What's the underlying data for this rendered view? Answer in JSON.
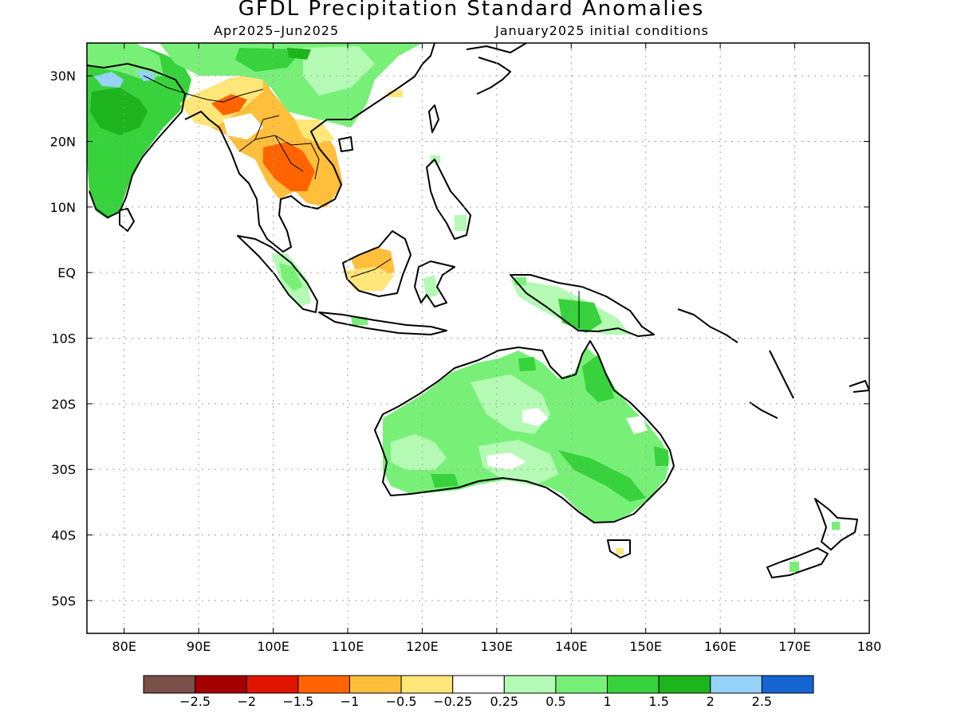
{
  "title": "GFDL Precipitation Standard Anomalies",
  "subtitle_left": "Apr2025–Jun2025",
  "subtitle_right": "January2025 initial conditions",
  "map": {
    "lon_range": [
      75,
      180
    ],
    "lat_range": [
      -55,
      35
    ],
    "lat_ticks": [
      {
        "value": 30,
        "label": "30N"
      },
      {
        "value": 20,
        "label": "20N"
      },
      {
        "value": 10,
        "label": "10N"
      },
      {
        "value": 0,
        "label": "EQ"
      },
      {
        "value": -10,
        "label": "10S"
      },
      {
        "value": -20,
        "label": "20S"
      },
      {
        "value": -30,
        "label": "30S"
      },
      {
        "value": -40,
        "label": "40S"
      },
      {
        "value": -50,
        "label": "50S"
      }
    ],
    "lon_ticks": [
      {
        "value": 80,
        "label": "80E"
      },
      {
        "value": 90,
        "label": "90E"
      },
      {
        "value": 100,
        "label": "100E"
      },
      {
        "value": 110,
        "label": "110E"
      },
      {
        "value": 120,
        "label": "120E"
      },
      {
        "value": 130,
        "label": "130E"
      },
      {
        "value": 140,
        "label": "140E"
      },
      {
        "value": 150,
        "label": "150E"
      },
      {
        "value": 160,
        "label": "160E"
      },
      {
        "value": 170,
        "label": "170E"
      },
      {
        "value": 180,
        "label": "180"
      }
    ],
    "grid": true
  },
  "legend": {
    "colors": [
      "#7a5048",
      "#a40000",
      "#e01500",
      "#ff6400",
      "#ffbe3c",
      "#ffe678",
      "#ffffff",
      "#b4fab4",
      "#78f078",
      "#37d23c",
      "#1eb41e",
      "#96d2fa",
      "#1464d2"
    ],
    "labels": [
      "−2.5",
      "−2",
      "−1.5",
      "−1",
      "−0.5",
      "−0.25",
      "0.25",
      "0.5",
      "1",
      "1.5",
      "2",
      "2.5"
    ]
  }
}
